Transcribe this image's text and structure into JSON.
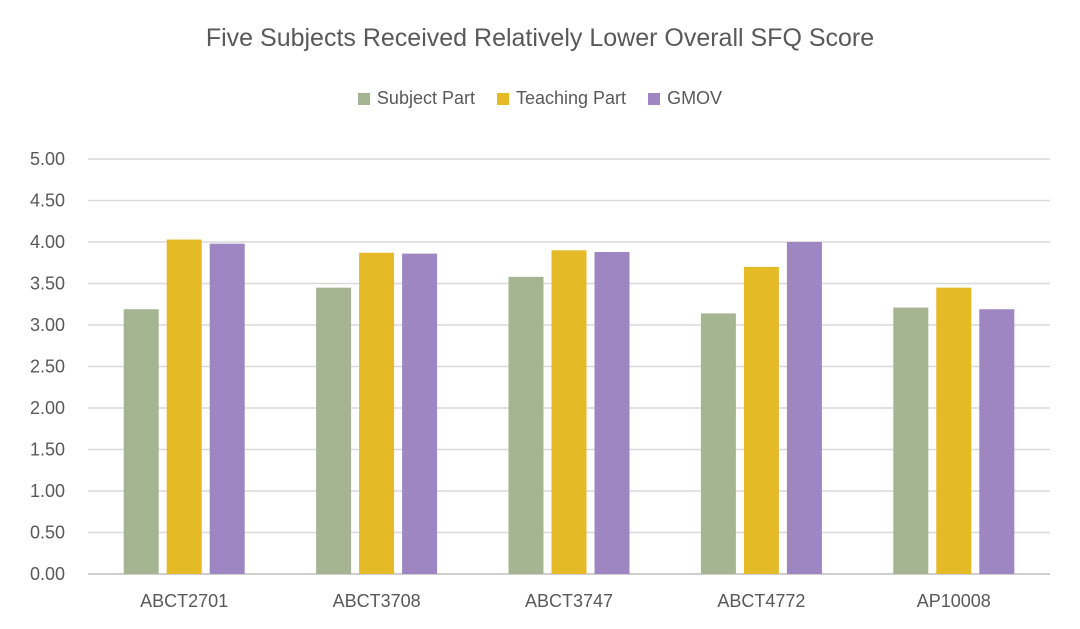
{
  "chart_data": {
    "type": "bar",
    "title": "Five Subjects Received Relatively Lower Overall SFQ Score",
    "xlabel": "",
    "ylabel": "",
    "ylim": [
      0,
      5
    ],
    "yticks": [
      "0.00",
      "0.50",
      "1.00",
      "1.50",
      "2.00",
      "2.50",
      "3.00",
      "3.50",
      "4.00",
      "4.50",
      "5.00"
    ],
    "grid": true,
    "legend_position": "top",
    "categories": [
      "ABCT2701",
      "ABCT3708",
      "ABCT3747",
      "ABCT4772",
      "AP10008"
    ],
    "series": [
      {
        "name": "Subject Part",
        "color": "#A5B592",
        "values": [
          3.19,
          3.45,
          3.58,
          3.14,
          3.21
        ]
      },
      {
        "name": "Teaching Part",
        "color": "#E4BA27",
        "values": [
          4.03,
          3.87,
          3.9,
          3.7,
          3.45
        ]
      },
      {
        "name": "GMOV",
        "color": "#9E86C2",
        "values": [
          3.98,
          3.86,
          3.88,
          4.0,
          3.19
        ]
      }
    ]
  }
}
